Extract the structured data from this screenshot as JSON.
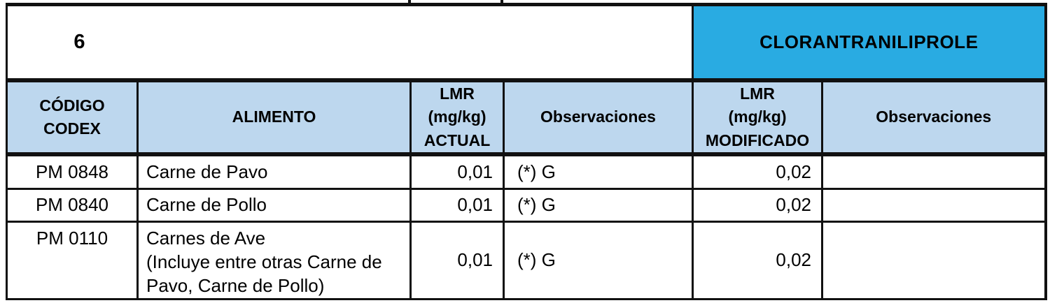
{
  "banner": {
    "page_label": "6",
    "compound": "CLORANTRANILIPROLE"
  },
  "colors": {
    "compound_header_cyan": "#29ABE2",
    "table_header_blue": "#BDD7EE",
    "border_black": "#111111"
  },
  "table": {
    "columns": [
      {
        "label": "CÓDIGO\nCODEX"
      },
      {
        "label": "ALIMENTO"
      },
      {
        "label": "LMR\n(mg/kg)\nACTUAL"
      },
      {
        "label": "Observaciones"
      },
      {
        "label": "LMR\n(mg/kg)\nMODIFICADO"
      },
      {
        "label": "Observaciones"
      }
    ],
    "rows": [
      {
        "codigo": "PM 0848",
        "alimento": "Carne de Pavo",
        "lmr_actual": "0,01",
        "observaciones_actual": "(*) G",
        "lmr_modificado": "0,02",
        "observaciones_modificado": ""
      },
      {
        "codigo": "PM 0840",
        "alimento": "Carne de Pollo",
        "lmr_actual": "0,01",
        "observaciones_actual": "(*) G",
        "lmr_modificado": "0,02",
        "observaciones_modificado": ""
      },
      {
        "codigo": "PM 0110",
        "alimento": "Carnes de Ave\n(Incluye entre otras Carne de Pavo, Carne de Pollo)",
        "lmr_actual": "0,01",
        "observaciones_actual": "(*) G",
        "lmr_modificado": "0,02",
        "observaciones_modificado": ""
      }
    ]
  }
}
